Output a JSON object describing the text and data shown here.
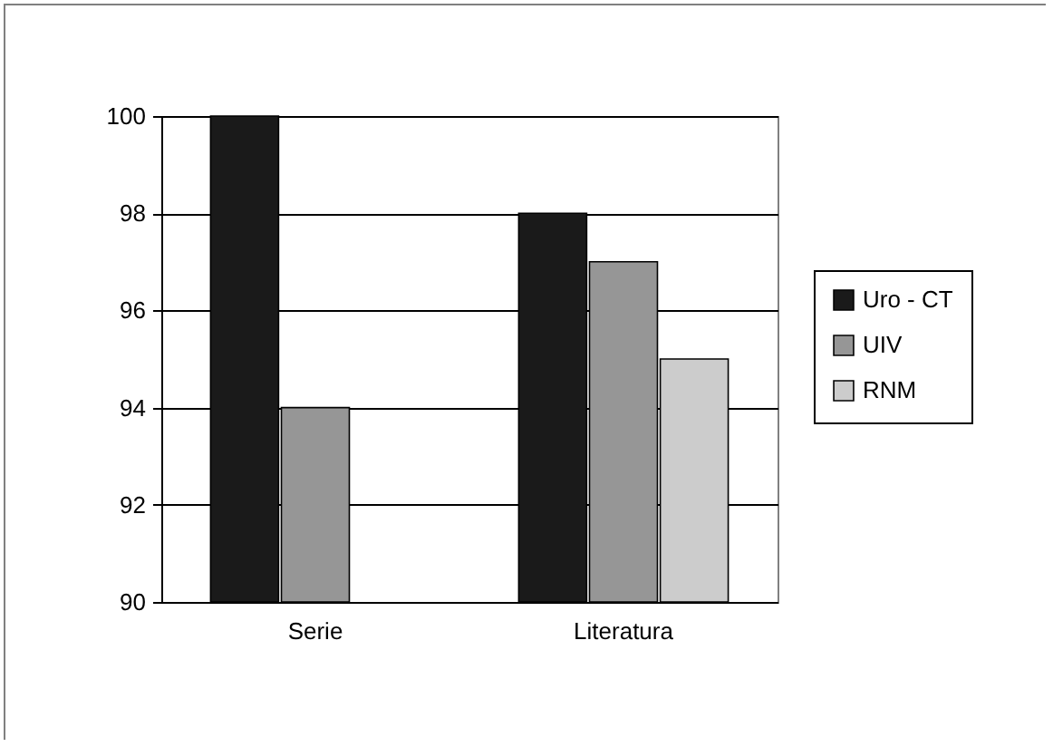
{
  "chart_data": {
    "type": "bar",
    "categories": [
      "Serie",
      "Literatura"
    ],
    "series": [
      {
        "name": "Uro - CT",
        "color": "#1a1a1a",
        "values": [
          100,
          98
        ]
      },
      {
        "name": "UIV",
        "color": "#969696",
        "values": [
          94,
          97
        ]
      },
      {
        "name": "RNM",
        "color": "#cccccc",
        "values": [
          null,
          95
        ]
      }
    ],
    "ylim": [
      90,
      100
    ],
    "yticks": [
      90,
      92,
      94,
      96,
      98,
      100
    ],
    "grid": "y",
    "legend": "right"
  }
}
